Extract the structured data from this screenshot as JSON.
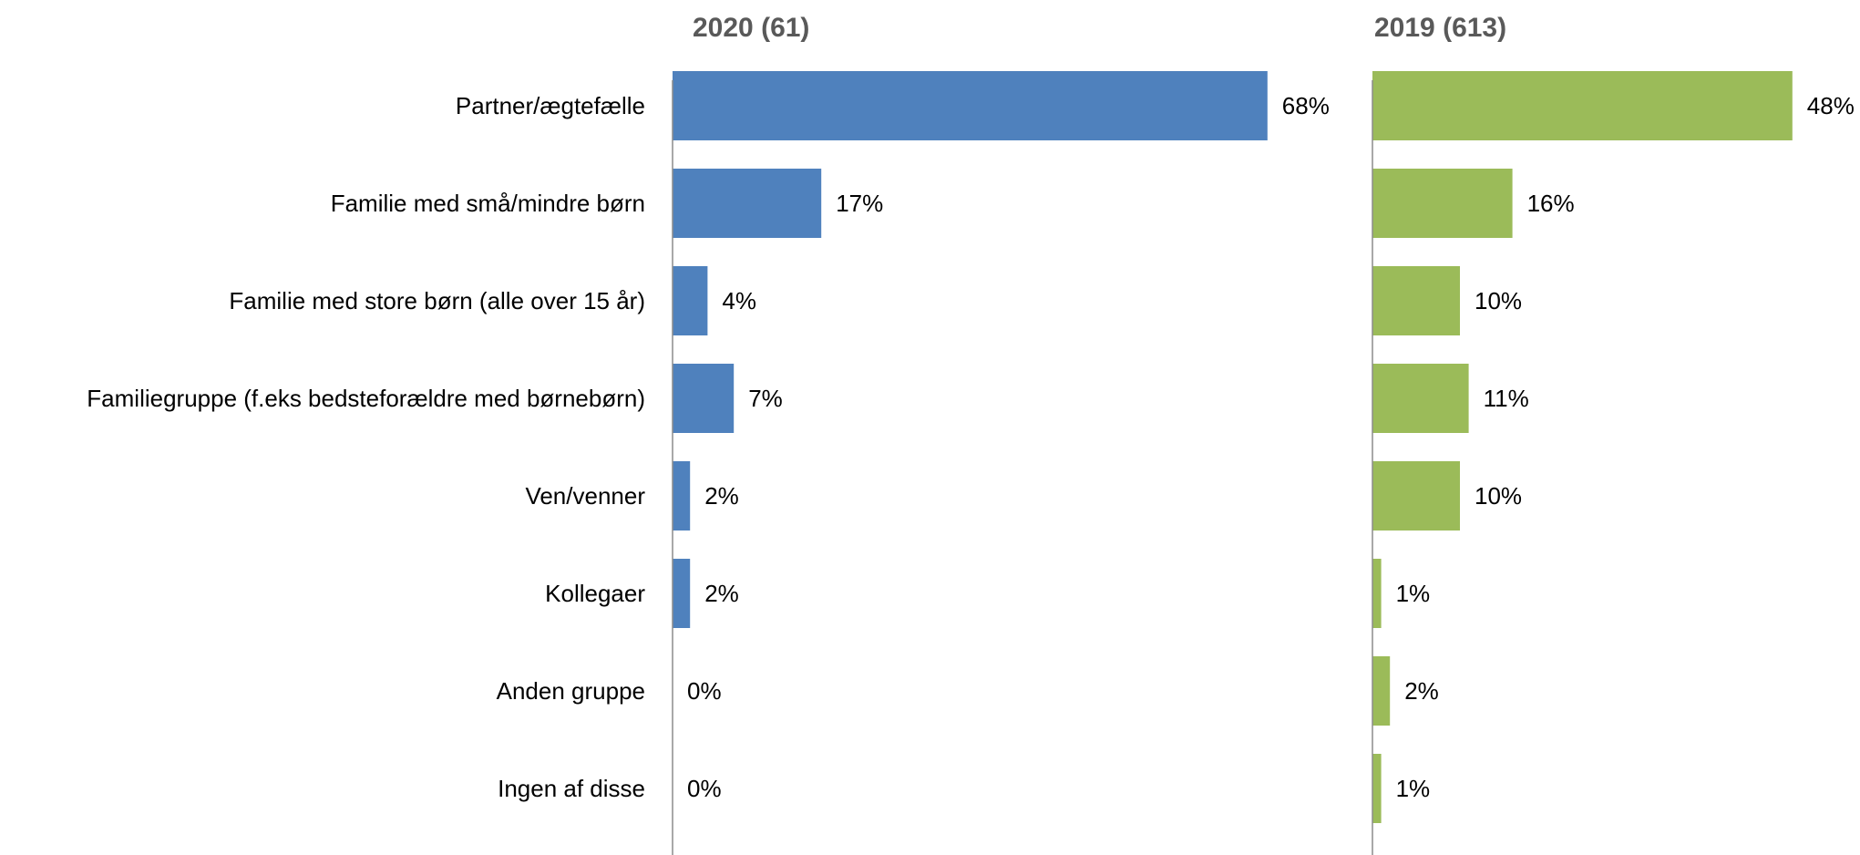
{
  "chart_data": {
    "type": "bar",
    "orientation": "horizontal",
    "categories": [
      "Partner/ægtefælle",
      "Familie med små/mindre børn",
      "Familie med store børn (alle over 15 år)",
      "Familiegruppe (f.eks bedsteforældre med børnebørn)",
      "Ven/venner",
      "Kollegaer",
      "Anden gruppe",
      "Ingen af disse"
    ],
    "series": [
      {
        "name": "2020 (61)",
        "color": "#4f81bd",
        "values": [
          68,
          17,
          4,
          7,
          2,
          2,
          0,
          0
        ],
        "labels": [
          "68%",
          "17%",
          "4%",
          "7%",
          "2%",
          "2%",
          "0%",
          "0%"
        ]
      },
      {
        "name": "2019 (613)",
        "color": "#9bbb59",
        "values": [
          48,
          16,
          10,
          11,
          10,
          1,
          2,
          1
        ],
        "labels": [
          "48%",
          "16%",
          "10%",
          "11%",
          "10%",
          "1%",
          "2%",
          "1%"
        ]
      }
    ],
    "xlabel": "",
    "ylabel": "",
    "unit": "%",
    "grid": false,
    "legend": "none"
  }
}
